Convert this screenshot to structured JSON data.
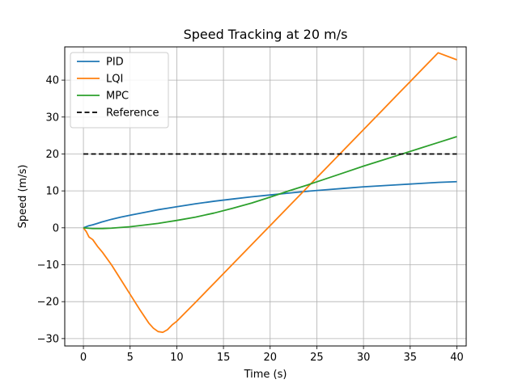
{
  "chart_data": {
    "type": "line",
    "title": "Speed Tracking at 20 m/s",
    "xlabel": "Time (s)",
    "ylabel": "Speed (m/s)",
    "xlim": [
      -2,
      41
    ],
    "ylim": [
      -32,
      49
    ],
    "xticks": [
      0,
      5,
      10,
      15,
      20,
      25,
      30,
      35,
      40
    ],
    "yticks": [
      -30,
      -20,
      -10,
      0,
      10,
      20,
      30,
      40
    ],
    "grid": true,
    "legend_position": "top-left",
    "series": [
      {
        "name": "PID",
        "color": "#1f77b4",
        "dash": "solid",
        "x": [
          0,
          0.5,
          1,
          1.5,
          2,
          3,
          4,
          5,
          6,
          7,
          8,
          9,
          10,
          12,
          14,
          16,
          18,
          20,
          22,
          24,
          26,
          28,
          30,
          32,
          34,
          36,
          38,
          40
        ],
        "y": [
          0,
          0.5,
          0.8,
          1.2,
          1.6,
          2.3,
          2.9,
          3.4,
          3.9,
          4.4,
          4.9,
          5.3,
          5.7,
          6.5,
          7.2,
          7.8,
          8.4,
          8.9,
          9.4,
          9.9,
          10.3,
          10.7,
          11.1,
          11.4,
          11.7,
          12.0,
          12.3,
          12.5
        ]
      },
      {
        "name": "LQI",
        "color": "#ff7f0e",
        "dash": "solid",
        "x": [
          0,
          0.3,
          0.6,
          1,
          1.5,
          2,
          3,
          4,
          5,
          6,
          7,
          7.5,
          8,
          8.5,
          9,
          9.5,
          10,
          12,
          14,
          16,
          18,
          20,
          22,
          24,
          26,
          28,
          30,
          32,
          34,
          36,
          38,
          40
        ],
        "y": [
          0,
          -1,
          -2.5,
          -3.2,
          -5,
          -6.5,
          -10,
          -14,
          -18,
          -22,
          -25.8,
          -27.2,
          -28.1,
          -28.3,
          -27.6,
          -26.3,
          -25.3,
          -20.2,
          -15,
          -9.8,
          -4.6,
          0.6,
          5.8,
          11,
          16.2,
          21.4,
          26.6,
          31.8,
          37,
          42.2,
          47.4,
          45.5
        ]
      },
      {
        "name": "MPC",
        "color": "#2ca02c",
        "dash": "solid",
        "x": [
          0,
          1,
          2,
          3,
          4,
          5,
          6,
          7,
          8,
          9,
          10,
          12,
          14,
          16,
          18,
          20,
          22,
          24,
          26,
          28,
          30,
          32,
          34,
          36,
          38,
          40
        ],
        "y": [
          0,
          -0.2,
          -0.2,
          -0.1,
          0.1,
          0.3,
          0.6,
          0.9,
          1.2,
          1.6,
          2.0,
          2.9,
          4.0,
          5.3,
          6.7,
          8.3,
          10.0,
          11.6,
          13.3,
          15.0,
          16.7,
          18.3,
          19.9,
          21.5,
          23.1,
          24.7
        ]
      },
      {
        "name": "Reference",
        "color": "#000000",
        "dash": "dashed",
        "x": [
          0,
          40
        ],
        "y": [
          20,
          20
        ]
      }
    ]
  }
}
